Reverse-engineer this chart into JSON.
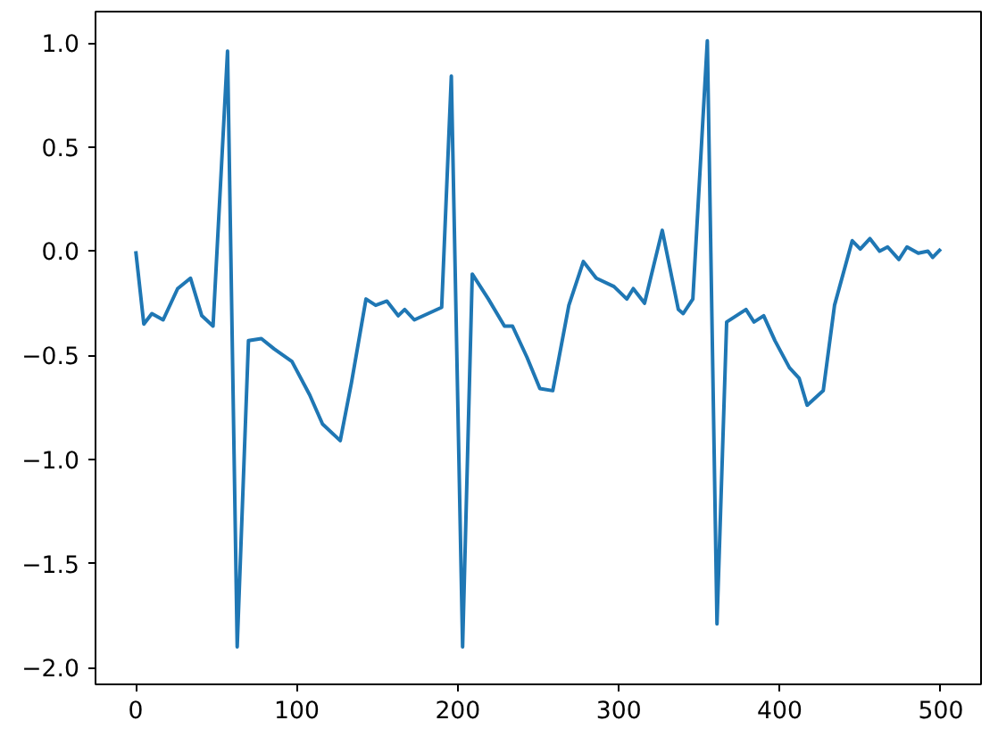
{
  "chart_data": {
    "type": "line",
    "x": [
      0,
      5,
      10,
      17,
      26,
      34,
      41,
      48,
      57,
      63,
      70,
      78,
      86,
      97,
      108,
      116,
      127,
      134,
      143,
      149,
      156,
      163,
      167,
      173,
      190,
      196,
      203,
      209,
      219,
      229,
      234,
      243,
      251,
      259,
      269,
      278,
      286,
      297,
      305,
      309,
      316,
      327,
      337,
      340,
      346,
      355,
      361,
      367,
      379,
      384,
      390,
      397,
      406,
      412,
      417,
      427,
      434,
      445,
      450,
      456,
      462,
      467,
      474,
      479,
      486,
      492,
      495,
      500
    ],
    "series": [
      {
        "color": "#1f77b4",
        "values": [
          0.0,
          -0.35,
          -0.3,
          -0.33,
          -0.18,
          -0.13,
          -0.31,
          -0.36,
          0.96,
          -1.9,
          -0.43,
          -0.42,
          -0.47,
          -0.53,
          -0.69,
          -0.83,
          -0.91,
          -0.63,
          -0.23,
          -0.26,
          -0.24,
          -0.31,
          -0.28,
          -0.33,
          -0.27,
          0.84,
          -1.9,
          -0.11,
          -0.23,
          -0.36,
          -0.36,
          -0.51,
          -0.66,
          -0.67,
          -0.26,
          -0.05,
          -0.13,
          -0.17,
          -0.23,
          -0.18,
          -0.25,
          0.1,
          -0.28,
          -0.3,
          -0.23,
          1.01,
          -1.79,
          -0.34,
          -0.28,
          -0.34,
          -0.31,
          -0.43,
          -0.56,
          -0.61,
          -0.74,
          -0.67,
          -0.26,
          0.05,
          0.01,
          0.06,
          0.0,
          0.02,
          -0.04,
          0.02,
          -0.01,
          0.0,
          -0.03,
          0.01
        ]
      }
    ],
    "xlim": [
      -25,
      525
    ],
    "ylim": [
      -2.08,
      1.15
    ],
    "xticks": [
      0,
      100,
      200,
      300,
      400,
      500
    ],
    "yticks": [
      {
        "value": -2.0,
        "label": "−2.0"
      },
      {
        "value": -1.5,
        "label": "−1.5"
      },
      {
        "value": -1.0,
        "label": "−1.0"
      },
      {
        "value": -0.5,
        "label": "−0.5"
      },
      {
        "value": 0.0,
        "label": "0.0"
      },
      {
        "value": 0.5,
        "label": "0.5"
      },
      {
        "value": 1.0,
        "label": "1.0"
      }
    ],
    "grid": false,
    "line_style": "solid"
  }
}
